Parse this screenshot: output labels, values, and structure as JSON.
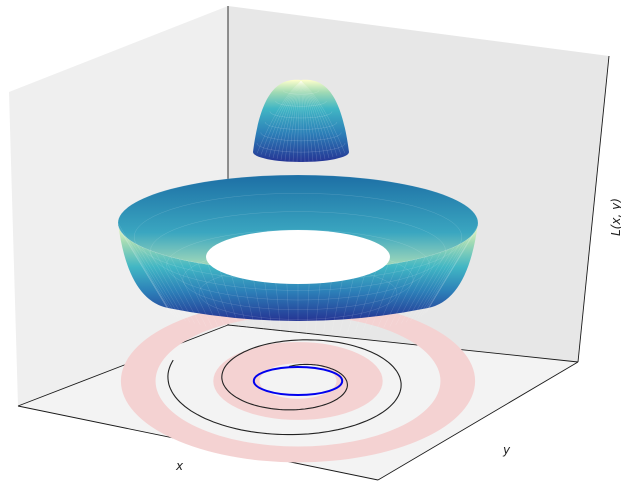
{
  "chart_data": {
    "type": "surface-3d",
    "xlabel": "x",
    "ylabel": "y",
    "zlabel": "L(x, y)",
    "grid": false,
    "colormap": "YlGnBu",
    "surfaces": [
      {
        "kind": "paraboloid-cap",
        "r_max": 1.0
      },
      {
        "kind": "annular-bowl",
        "r_inner": 2.2,
        "r_outer": 3.7
      }
    ],
    "floor_projection": {
      "feasible_rings": [
        {
          "r_inner": 1.0,
          "r_outer": 2.2
        },
        {
          "r_inner": 3.7,
          "r_outer": 4.6
        }
      ],
      "ring_color": "#f4d2d2",
      "spiral_trajectory_color": "#222222",
      "limit_cycle_color": "#0000ee",
      "limit_cycle_radius": 0.85
    }
  }
}
